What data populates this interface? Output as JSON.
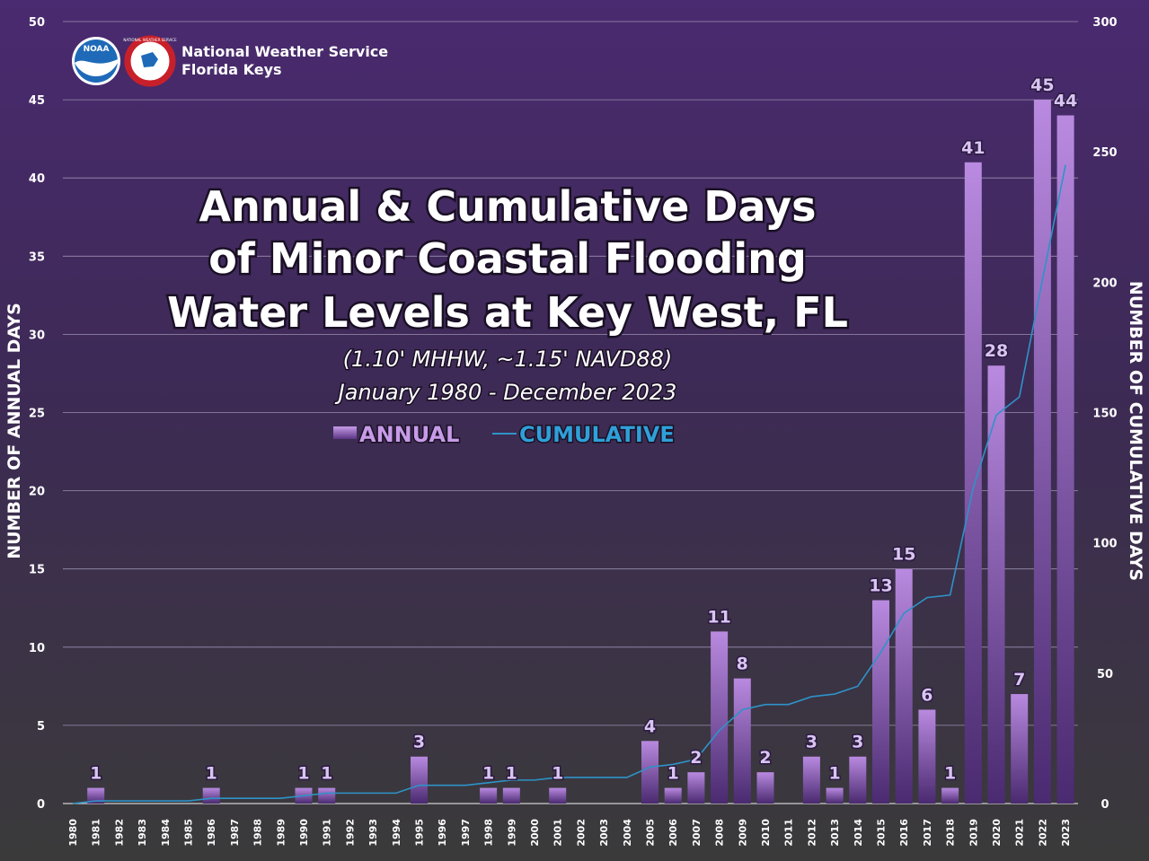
{
  "logo": {
    "org_line1": "National Weather Service",
    "org_line2": "Florida Keys",
    "noaa_text": "NOAA",
    "nws_text": "NATIONAL WEATHER SERVICE"
  },
  "chart_data": {
    "type": "bar",
    "title_lines": [
      "Annual & Cumulative Days",
      "of Minor Coastal Flooding",
      "Water Levels at Key West, FL"
    ],
    "subtitle_lines": [
      "(1.10' MHHW, ~1.15' NAVD88)",
      "January 1980 - December 2023"
    ],
    "ylabel_left": "NUMBER OF ANNUAL DAYS",
    "ylabel_right": "NUMBER OF CUMULATIVE DAYS",
    "ylim_left": [
      0,
      50
    ],
    "ylim_right": [
      0,
      300
    ],
    "yticks_left": [
      "0",
      "5",
      "10",
      "15",
      "20",
      "25",
      "30",
      "35",
      "40",
      "45",
      "50"
    ],
    "yticks_right": [
      "0",
      "50",
      "100",
      "150",
      "200",
      "250",
      "300"
    ],
    "grid": true,
    "legend_position": "top-center",
    "legend": {
      "annual": "ANNUAL",
      "cumulative": "CUMULATIVE"
    },
    "colors": {
      "annual_top": "#b98ae0",
      "annual_bottom": "#4a2a70",
      "cumulative": "#2e93c8"
    },
    "categories": [
      "1980",
      "1981",
      "1982",
      "1983",
      "1984",
      "1985",
      "1986",
      "1987",
      "1988",
      "1989",
      "1990",
      "1991",
      "1992",
      "1993",
      "1994",
      "1995",
      "1996",
      "1997",
      "1998",
      "1999",
      "2000",
      "2001",
      "2002",
      "2003",
      "2004",
      "2005",
      "2006",
      "2007",
      "2008",
      "2009",
      "2010",
      "2011",
      "2012",
      "2013",
      "2014",
      "2015",
      "2016",
      "2017",
      "2018",
      "2019",
      "2020",
      "2021",
      "2022",
      "2023"
    ],
    "series": [
      {
        "name": "ANNUAL",
        "axis": "left",
        "values": [
          0,
          1,
          0,
          0,
          0,
          0,
          1,
          0,
          0,
          0,
          1,
          1,
          0,
          0,
          0,
          3,
          0,
          0,
          1,
          1,
          0,
          1,
          0,
          0,
          0,
          4,
          1,
          2,
          11,
          8,
          2,
          0,
          3,
          1,
          3,
          13,
          15,
          6,
          1,
          41,
          28,
          7,
          45,
          44
        ]
      },
      {
        "name": "CUMULATIVE",
        "axis": "right",
        "values": [
          0,
          1,
          1,
          1,
          1,
          1,
          2,
          2,
          2,
          2,
          3,
          4,
          4,
          4,
          4,
          7,
          7,
          7,
          8,
          9,
          9,
          10,
          10,
          10,
          10,
          14,
          15,
          17,
          28,
          36,
          38,
          38,
          41,
          42,
          45,
          58,
          73,
          79,
          80,
          121,
          149,
          156,
          201,
          245
        ]
      }
    ]
  }
}
